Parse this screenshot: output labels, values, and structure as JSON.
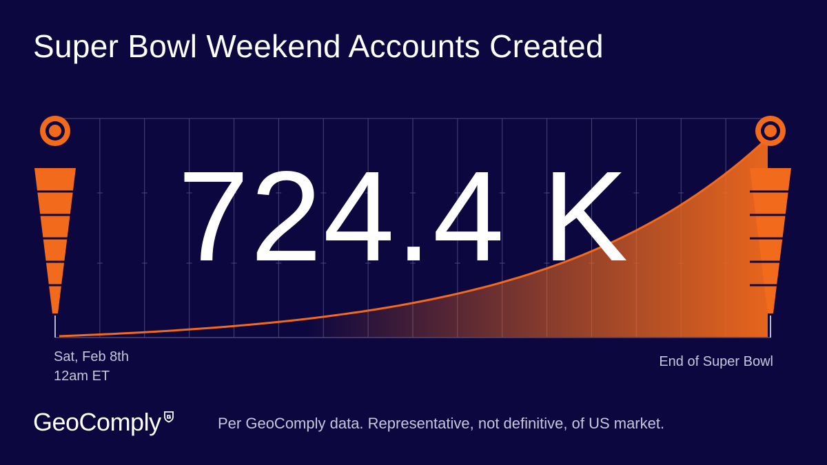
{
  "title": "Super Bowl Weekend Accounts Created",
  "big_value": "724.4 K",
  "colors": {
    "background": "#0d0740",
    "accent": "#f26a1b",
    "grid": "#4a4678",
    "muted_text": "#c9c6dc"
  },
  "icons": [
    "goal-post-left-icon",
    "goal-post-right-icon",
    "brand-shield-icon"
  ],
  "chart_data": {
    "type": "area",
    "title": "Super Bowl Weekend Accounts Created",
    "xlabel": "",
    "ylabel": "",
    "x_start_label": [
      "Sat, Feb 8th",
      "12am ET"
    ],
    "x_end_label": "End of Super Bowl",
    "grid": true,
    "curve": "exponential",
    "final_value": 724.4,
    "unit": "K"
  },
  "footer": {
    "brand": "GeoComply",
    "note": "Per GeoComply data. Representative, not definitive, of US market."
  }
}
